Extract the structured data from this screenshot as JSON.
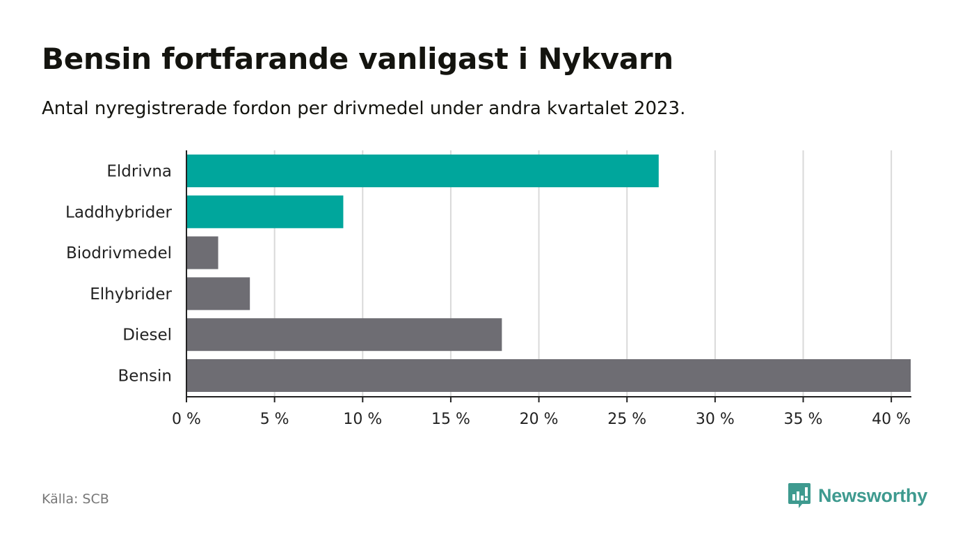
{
  "header": {
    "title": "Bensin fortfarande vanligast i Nykvarn",
    "subtitle": "Antal nyregistrerade fordon per drivmedel under andra kvartalet 2023."
  },
  "footer": {
    "source": "Källa: SCB",
    "brand": "Newsworthy"
  },
  "colors": {
    "highlight": "#00a69c",
    "default": "#6e6d73",
    "grid": "#d9d9d9",
    "axis": "#222222",
    "brand": "#3e9a8f"
  },
  "chart_data": {
    "type": "bar",
    "orientation": "horizontal",
    "title": "Bensin fortfarande vanligast i Nykvarn",
    "subtitle": "Antal nyregistrerade fordon per drivmedel under andra kvartalet 2023.",
    "categories": [
      "Eldrivna",
      "Laddhybrider",
      "Biodrivmedel",
      "Elhybrider",
      "Diesel",
      "Bensin"
    ],
    "values": [
      26.8,
      8.9,
      1.8,
      3.6,
      17.9,
      41.1
    ],
    "highlighted": [
      true,
      true,
      false,
      false,
      false,
      false
    ],
    "unit": "%",
    "xlim": [
      0,
      41.1
    ],
    "xticks": [
      0,
      5,
      10,
      15,
      20,
      25,
      30,
      35,
      40
    ],
    "xtick_labels": [
      "0 %",
      "5 %",
      "10 %",
      "15 %",
      "20 %",
      "25 %",
      "30 %",
      "35 %",
      "40 %"
    ],
    "xlabel": "",
    "ylabel": "",
    "grid": true
  }
}
